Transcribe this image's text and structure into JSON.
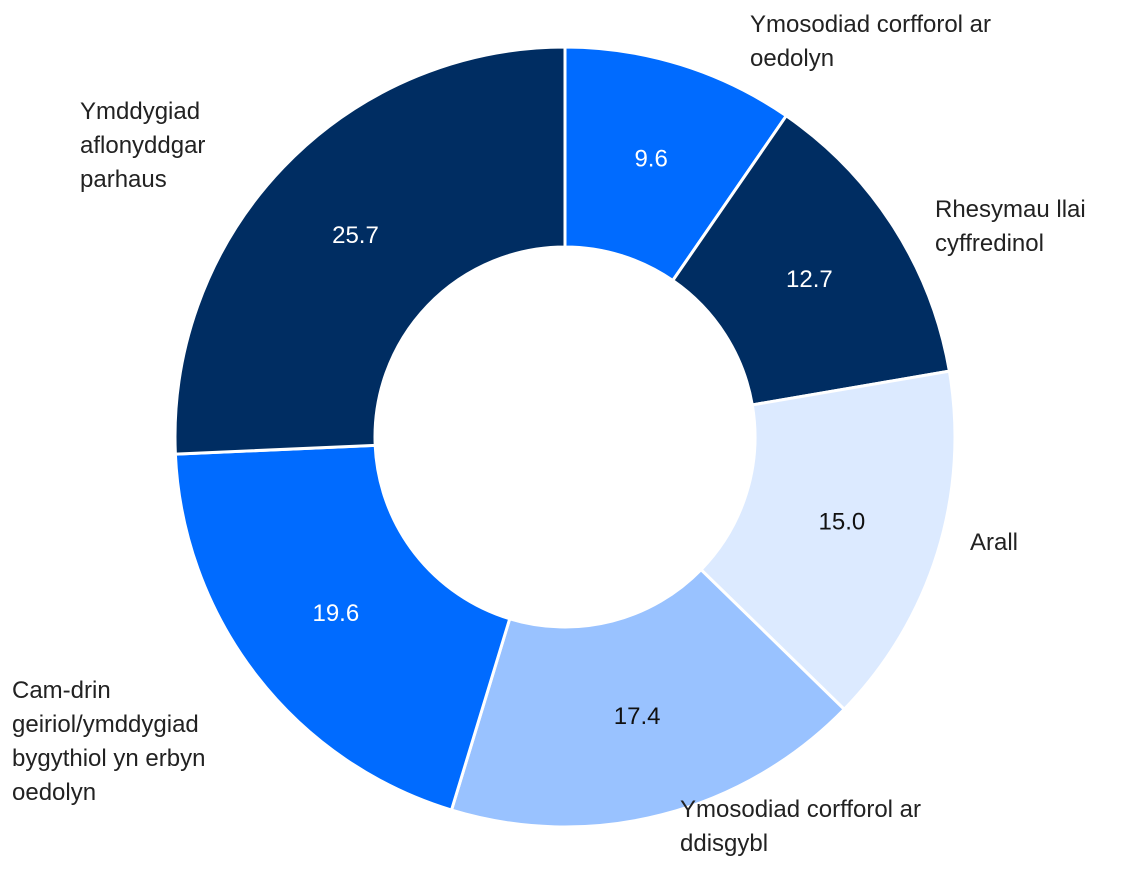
{
  "chart_data": {
    "type": "pie",
    "donut": true,
    "categories": [
      "Ymosodiad corfforol ar oedolyn",
      "Rhesymau llai cyffredinol",
      "Arall",
      "Ymosodiad corfforol ar ddisgybl",
      "Cam-drin geiriol/ymddygiad bygythiol yn erbyn oedolyn",
      "Ymddygiad aflonyddgar parhaus"
    ],
    "values": [
      9.6,
      12.7,
      15.0,
      17.4,
      19.6,
      25.7
    ],
    "value_labels": [
      "9.6",
      "12.7",
      "15.0",
      "17.4",
      "19.6",
      "25.7"
    ],
    "colors": [
      "#006bff",
      "#002d62",
      "#dceaff",
      "#99c2ff",
      "#006bff",
      "#002d62"
    ]
  }
}
